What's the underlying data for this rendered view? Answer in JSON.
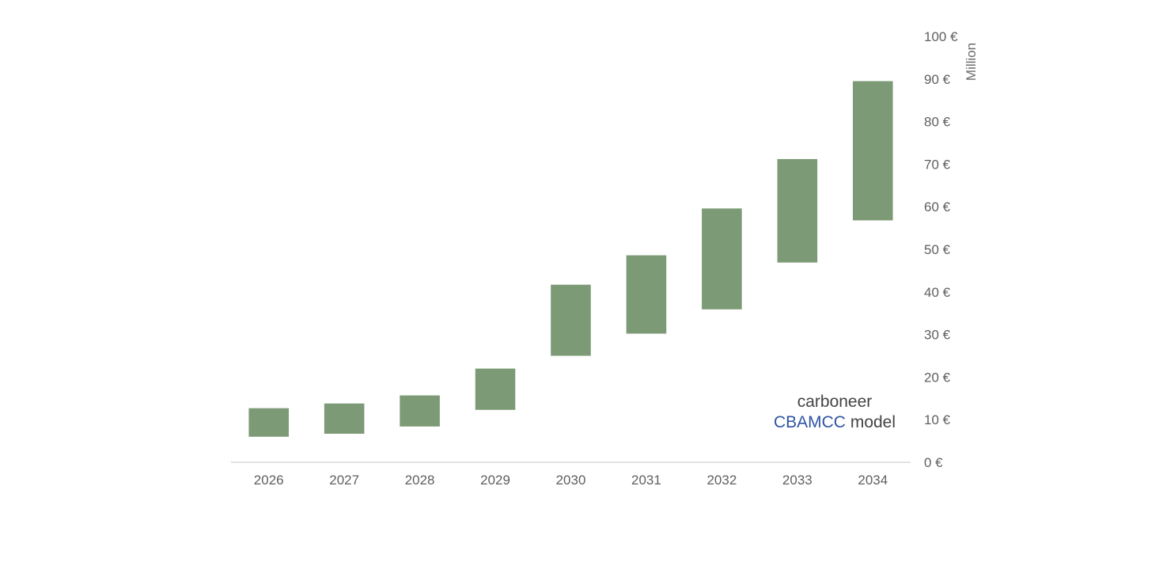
{
  "chart_data": {
    "type": "bar",
    "subtype": "floating-range",
    "title": "",
    "xlabel": "",
    "ylabel": "",
    "y_axis_unit_label": "Million",
    "y_axis_position": "right",
    "ylim": [
      0,
      100
    ],
    "y_ticks": [
      0,
      10,
      20,
      30,
      40,
      50,
      60,
      70,
      80,
      90,
      100
    ],
    "y_tick_labels": [
      "0 €",
      "10 €",
      "20 €",
      "30 €",
      "40 €",
      "50 €",
      "60 €",
      "70 €",
      "80 €",
      "90 €",
      "100 €"
    ],
    "categories": [
      "2026",
      "2027",
      "2028",
      "2029",
      "2030",
      "2031",
      "2032",
      "2033",
      "2034"
    ],
    "series": [
      {
        "low": [
          6.0,
          6.7,
          8.4,
          12.3,
          25.0,
          30.2,
          35.9,
          46.9,
          56.8
        ],
        "high": [
          12.7,
          13.8,
          15.7,
          22.0,
          41.7,
          48.6,
          59.6,
          71.2,
          89.5
        ]
      }
    ],
    "grid": false,
    "legend": "none",
    "colors": {
      "bar": "#7d9a76",
      "axis_line": "#d9d9d9",
      "tick_text": "#5f5f5f"
    },
    "annotation": {
      "line1": "carboneer",
      "line2_highlight": "CBAMCC",
      "line2_rest": "model",
      "colors": {
        "dark": "#444444",
        "highlight": "#2e54a4"
      }
    }
  }
}
